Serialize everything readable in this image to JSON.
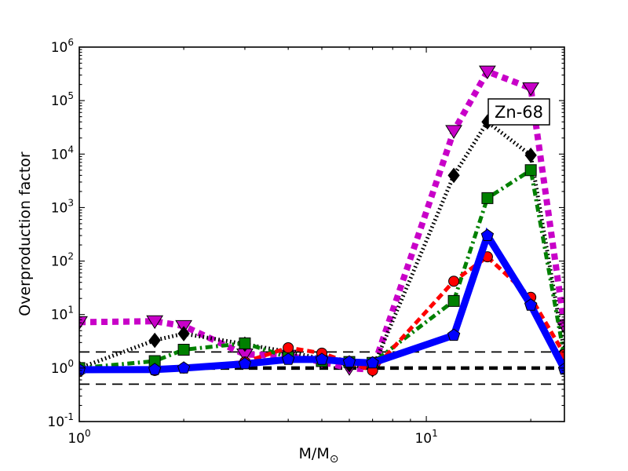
{
  "figure": {
    "background": "#ffffff",
    "ylabel": "Overproduction factor",
    "xlabel_main": "M/M",
    "xlabel_sub": "⊙",
    "annotation_label": "Zn-68"
  },
  "axes": {
    "x_scale": "log",
    "y_scale": "log",
    "x_min": 1,
    "x_max": 25,
    "y_min": 0.1,
    "y_max": 1000000,
    "x_tick_exponents": [
      "0",
      "1"
    ],
    "y_tick_exponents": [
      "-1",
      "0",
      "1",
      "2",
      "3",
      "4",
      "5",
      "6"
    ],
    "tick_base": "10",
    "grid": false,
    "legend": "none"
  },
  "chart_data": {
    "type": "line",
    "title": "",
    "xlabel": "M/M☉",
    "ylabel": "Overproduction factor",
    "xlim": [
      1,
      25
    ],
    "ylim": [
      0.1,
      1000000
    ],
    "x": [
      1.0,
      1.65,
      2.0,
      3.0,
      4.0,
      5.0,
      6.0,
      7.0,
      12.0,
      15.0,
      20.0,
      25.0
    ],
    "series": [
      {
        "id": "magenta-thick-dashed-triangles",
        "color": "#C800C8",
        "line_style": "dashed",
        "line_width": 8,
        "marker": "triangle-down",
        "values": [
          7.2,
          7.5,
          6.1,
          1.8,
          1.7,
          1.3,
          1.0,
          0.93,
          27000,
          350000,
          170000,
          6
        ]
      },
      {
        "id": "black-dotted-diamonds",
        "color": "#000000",
        "line_style": "dotted",
        "line_width": 5,
        "marker": "diamond",
        "values": [
          1.0,
          3.3,
          4.4,
          2.8,
          2.0,
          1.5,
          1.15,
          0.97,
          4000,
          40000,
          9500,
          2
        ]
      },
      {
        "id": "green-dashdot-squares",
        "color": "#008000",
        "line_style": "dashdot",
        "line_width": 5,
        "marker": "square",
        "values": [
          1.0,
          1.35,
          2.2,
          2.9,
          1.6,
          1.35,
          1.3,
          1.25,
          18,
          1500,
          5000,
          1.6
        ]
      },
      {
        "id": "red-dashed-circles",
        "color": "#FF0000",
        "line_style": "dashed",
        "line_width": 5,
        "marker": "circle",
        "values": [
          0.88,
          0.9,
          1.0,
          1.3,
          2.4,
          1.9,
          1.27,
          0.9,
          42,
          120,
          21,
          1.8
        ]
      },
      {
        "id": "blue-solid-pentagons",
        "color": "#0000FF",
        "line_style": "solid",
        "line_width": 9,
        "marker": "pentagon",
        "values": [
          0.93,
          0.94,
          1.0,
          1.2,
          1.45,
          1.45,
          1.3,
          1.25,
          4.1,
          300,
          15,
          0.95
        ]
      }
    ],
    "reference_lines": [
      {
        "y": 2,
        "style": "dashed-thin",
        "color": "#000000"
      },
      {
        "y": 1,
        "style": "dashed-thick",
        "color": "#000000"
      },
      {
        "y": 0.5,
        "style": "dashed-thin",
        "color": "#000000"
      }
    ],
    "annotation": {
      "text": "Zn-68",
      "x": 18.5,
      "y": 62000
    }
  }
}
